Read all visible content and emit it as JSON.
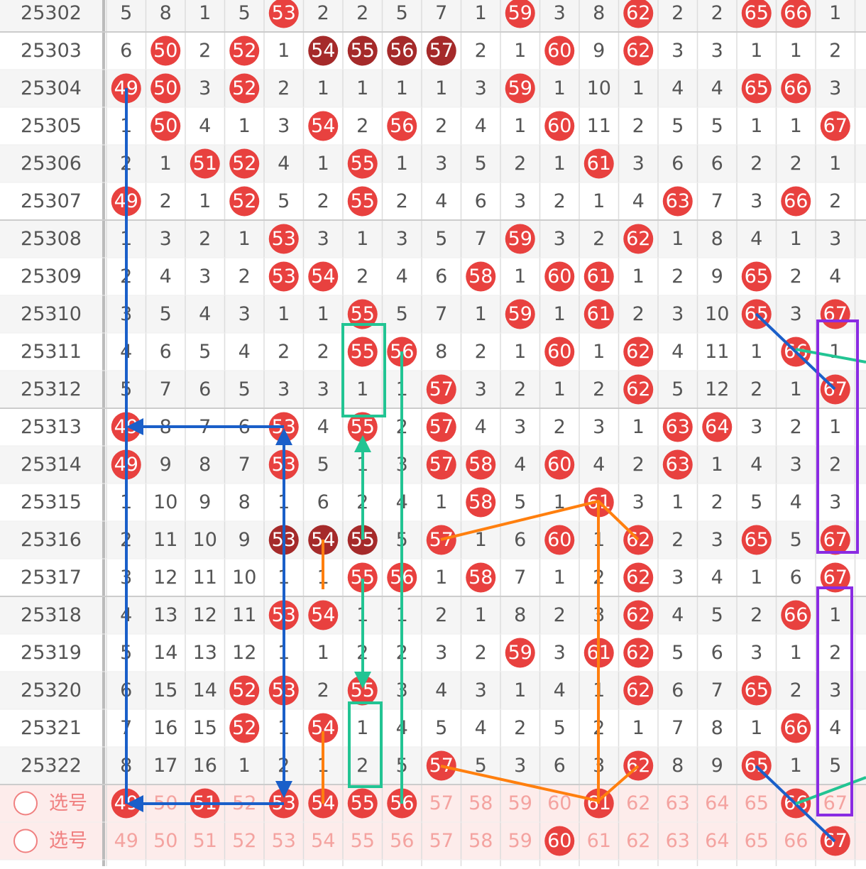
{
  "rows": [
    {
      "period": "25302",
      "cells": [
        5,
        8,
        1,
        5,
        53,
        2,
        2,
        5,
        7,
        1,
        59,
        3,
        8,
        62,
        2,
        2,
        65,
        66,
        1
      ]
    },
    {
      "period": "25303",
      "cells": [
        6,
        50,
        2,
        52,
        1,
        54,
        55,
        56,
        57,
        2,
        1,
        60,
        9,
        62,
        3,
        3,
        1,
        1,
        2
      ],
      "dark": [
        5,
        6,
        7,
        8
      ]
    },
    {
      "period": "25304",
      "cells": [
        49,
        50,
        3,
        52,
        2,
        1,
        1,
        1,
        1,
        3,
        59,
        1,
        10,
        1,
        4,
        4,
        65,
        66,
        3
      ]
    },
    {
      "period": "25305",
      "cells": [
        1,
        50,
        4,
        1,
        3,
        54,
        2,
        56,
        2,
        4,
        1,
        60,
        11,
        2,
        5,
        5,
        1,
        1,
        67
      ]
    },
    {
      "period": "25306",
      "cells": [
        2,
        1,
        51,
        52,
        4,
        1,
        55,
        1,
        3,
        5,
        2,
        1,
        61,
        3,
        6,
        6,
        2,
        2,
        1
      ]
    },
    {
      "period": "25307",
      "cells": [
        49,
        2,
        1,
        52,
        5,
        2,
        55,
        2,
        4,
        6,
        3,
        2,
        1,
        4,
        63,
        7,
        3,
        66,
        2
      ]
    },
    {
      "period": "25308",
      "cells": [
        1,
        3,
        2,
        1,
        53,
        3,
        1,
        3,
        5,
        7,
        59,
        3,
        2,
        62,
        1,
        8,
        4,
        1,
        3
      ]
    },
    {
      "period": "25309",
      "cells": [
        2,
        4,
        3,
        2,
        53,
        54,
        2,
        4,
        6,
        58,
        1,
        60,
        61,
        1,
        2,
        9,
        65,
        2,
        4
      ]
    },
    {
      "period": "25310",
      "cells": [
        3,
        5,
        4,
        3,
        1,
        1,
        55,
        5,
        7,
        1,
        59,
        1,
        61,
        2,
        3,
        10,
        65,
        3,
        67
      ]
    },
    {
      "period": "25311",
      "cells": [
        4,
        6,
        5,
        4,
        2,
        2,
        55,
        56,
        8,
        2,
        1,
        60,
        1,
        62,
        4,
        11,
        1,
        66,
        1
      ]
    },
    {
      "period": "25312",
      "cells": [
        5,
        7,
        6,
        5,
        3,
        3,
        1,
        1,
        57,
        3,
        2,
        1,
        2,
        62,
        5,
        12,
        2,
        1,
        67
      ]
    },
    {
      "period": "25313",
      "cells": [
        49,
        8,
        7,
        6,
        53,
        4,
        55,
        2,
        57,
        4,
        3,
        2,
        3,
        1,
        63,
        64,
        3,
        2,
        1
      ]
    },
    {
      "period": "25314",
      "cells": [
        49,
        9,
        8,
        7,
        53,
        5,
        1,
        3,
        57,
        58,
        4,
        60,
        4,
        2,
        63,
        1,
        4,
        3,
        2
      ]
    },
    {
      "period": "25315",
      "cells": [
        1,
        10,
        9,
        8,
        1,
        6,
        2,
        4,
        1,
        58,
        5,
        1,
        61,
        3,
        1,
        2,
        5,
        4,
        3
      ]
    },
    {
      "period": "25316",
      "cells": [
        2,
        11,
        10,
        9,
        53,
        54,
        55,
        5,
        57,
        1,
        6,
        60,
        1,
        62,
        2,
        3,
        65,
        5,
        67
      ],
      "dark": [
        4,
        5,
        6
      ]
    },
    {
      "period": "25317",
      "cells": [
        3,
        12,
        11,
        10,
        1,
        1,
        55,
        56,
        1,
        58,
        7,
        1,
        2,
        62,
        3,
        4,
        1,
        6,
        67
      ]
    },
    {
      "period": "25318",
      "cells": [
        4,
        13,
        12,
        11,
        53,
        54,
        1,
        1,
        2,
        1,
        8,
        2,
        3,
        62,
        4,
        5,
        2,
        66,
        1
      ]
    },
    {
      "period": "25319",
      "cells": [
        5,
        14,
        13,
        12,
        1,
        1,
        2,
        2,
        3,
        2,
        59,
        3,
        61,
        62,
        5,
        6,
        3,
        1,
        2
      ]
    },
    {
      "period": "25320",
      "cells": [
        6,
        15,
        14,
        52,
        53,
        2,
        55,
        3,
        4,
        3,
        1,
        4,
        1,
        62,
        6,
        7,
        65,
        2,
        3
      ]
    },
    {
      "period": "25321",
      "cells": [
        7,
        16,
        15,
        52,
        1,
        54,
        1,
        4,
        5,
        4,
        2,
        5,
        2,
        1,
        7,
        8,
        1,
        66,
        4
      ]
    },
    {
      "period": "25322",
      "cells": [
        8,
        17,
        16,
        1,
        2,
        1,
        2,
        5,
        57,
        5,
        3,
        6,
        3,
        62,
        8,
        9,
        65,
        1,
        5
      ]
    }
  ],
  "footer": [
    {
      "label": "选号",
      "cells": [
        49,
        50,
        51,
        52,
        53,
        54,
        55,
        56,
        57,
        58,
        59,
        60,
        61,
        62,
        63,
        64,
        65,
        66,
        67
      ],
      "picked": [
        0,
        2,
        4,
        5,
        6,
        7,
        12,
        17
      ]
    },
    {
      "label": "选号",
      "cells": [
        49,
        50,
        51,
        52,
        53,
        54,
        55,
        56,
        57,
        58,
        59,
        60,
        61,
        62,
        63,
        64,
        65,
        66,
        67
      ],
      "picked": [
        11,
        18
      ]
    }
  ]
}
